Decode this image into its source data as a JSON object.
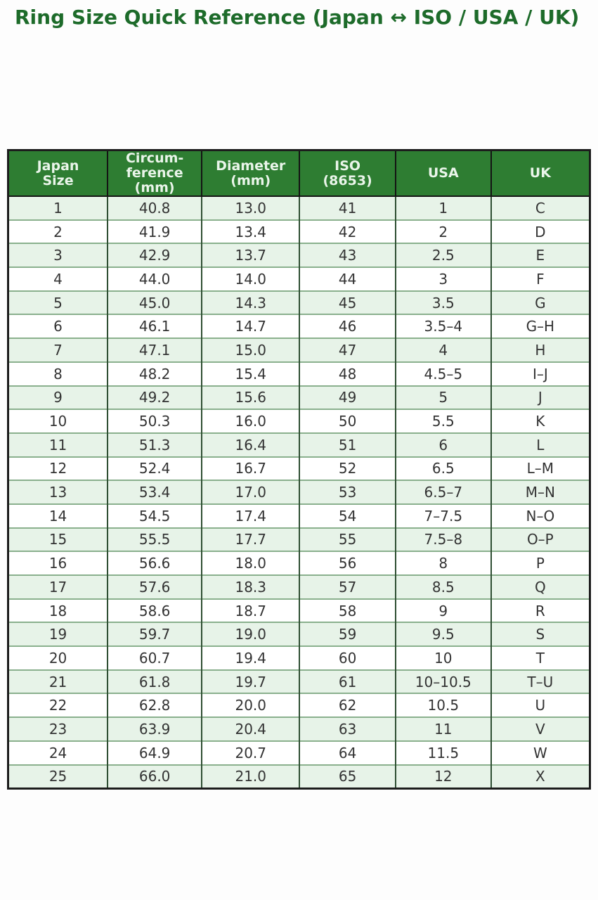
{
  "title": "Ring Size Quick Reference (Japan ↔ ISO / USA / UK)",
  "colors": {
    "title_text": "#1d6b2a",
    "header_bg": "#2e7d32",
    "header_text": "#eaf5ea",
    "row_alt_bg": "#e7f3e8",
    "row_bg": "#ffffff",
    "outer_border": "#1c1c1c",
    "column_divider": "#2f4f33",
    "row_divider": "#8ab08d",
    "cell_text": "#333333"
  },
  "chart_data": {
    "type": "table",
    "title": "Ring Size Quick Reference (Japan ↔ ISO / USA / UK)",
    "legend_position": "none",
    "grid": "on",
    "columns": [
      {
        "id": "japan",
        "lines": [
          "Japan",
          "Size"
        ]
      },
      {
        "id": "circumference",
        "lines": [
          "Circum-",
          "ference",
          "(mm)"
        ]
      },
      {
        "id": "diameter",
        "lines": [
          "Diameter",
          "(mm)"
        ]
      },
      {
        "id": "iso",
        "lines": [
          "ISO",
          "(8653)"
        ]
      },
      {
        "id": "usa",
        "lines": [
          "USA"
        ]
      },
      {
        "id": "uk",
        "lines": [
          "UK"
        ]
      }
    ],
    "rows": [
      [
        "1",
        "40.8",
        "13.0",
        "41",
        "1",
        "C"
      ],
      [
        "2",
        "41.9",
        "13.4",
        "42",
        "2",
        "D"
      ],
      [
        "3",
        "42.9",
        "13.7",
        "43",
        "2.5",
        "E"
      ],
      [
        "4",
        "44.0",
        "14.0",
        "44",
        "3",
        "F"
      ],
      [
        "5",
        "45.0",
        "14.3",
        "45",
        "3.5",
        "G"
      ],
      [
        "6",
        "46.1",
        "14.7",
        "46",
        "3.5–4",
        "G–H"
      ],
      [
        "7",
        "47.1",
        "15.0",
        "47",
        "4",
        "H"
      ],
      [
        "8",
        "48.2",
        "15.4",
        "48",
        "4.5–5",
        "I–J"
      ],
      [
        "9",
        "49.2",
        "15.6",
        "49",
        "5",
        "J"
      ],
      [
        "10",
        "50.3",
        "16.0",
        "50",
        "5.5",
        "K"
      ],
      [
        "11",
        "51.3",
        "16.4",
        "51",
        "6",
        "L"
      ],
      [
        "12",
        "52.4",
        "16.7",
        "52",
        "6.5",
        "L–M"
      ],
      [
        "13",
        "53.4",
        "17.0",
        "53",
        "6.5–7",
        "M–N"
      ],
      [
        "14",
        "54.5",
        "17.4",
        "54",
        "7–7.5",
        "N–O"
      ],
      [
        "15",
        "55.5",
        "17.7",
        "55",
        "7.5–8",
        "O–P"
      ],
      [
        "16",
        "56.6",
        "18.0",
        "56",
        "8",
        "P"
      ],
      [
        "17",
        "57.6",
        "18.3",
        "57",
        "8.5",
        "Q"
      ],
      [
        "18",
        "58.6",
        "18.7",
        "58",
        "9",
        "R"
      ],
      [
        "19",
        "59.7",
        "19.0",
        "59",
        "9.5",
        "S"
      ],
      [
        "20",
        "60.7",
        "19.4",
        "60",
        "10",
        "T"
      ],
      [
        "21",
        "61.8",
        "19.7",
        "61",
        "10–10.5",
        "T–U"
      ],
      [
        "22",
        "62.8",
        "20.0",
        "62",
        "10.5",
        "U"
      ],
      [
        "23",
        "63.9",
        "20.4",
        "63",
        "11",
        "V"
      ],
      [
        "24",
        "64.9",
        "20.7",
        "64",
        "11.5",
        "W"
      ],
      [
        "25",
        "66.0",
        "21.0",
        "65",
        "12",
        "X"
      ]
    ]
  }
}
